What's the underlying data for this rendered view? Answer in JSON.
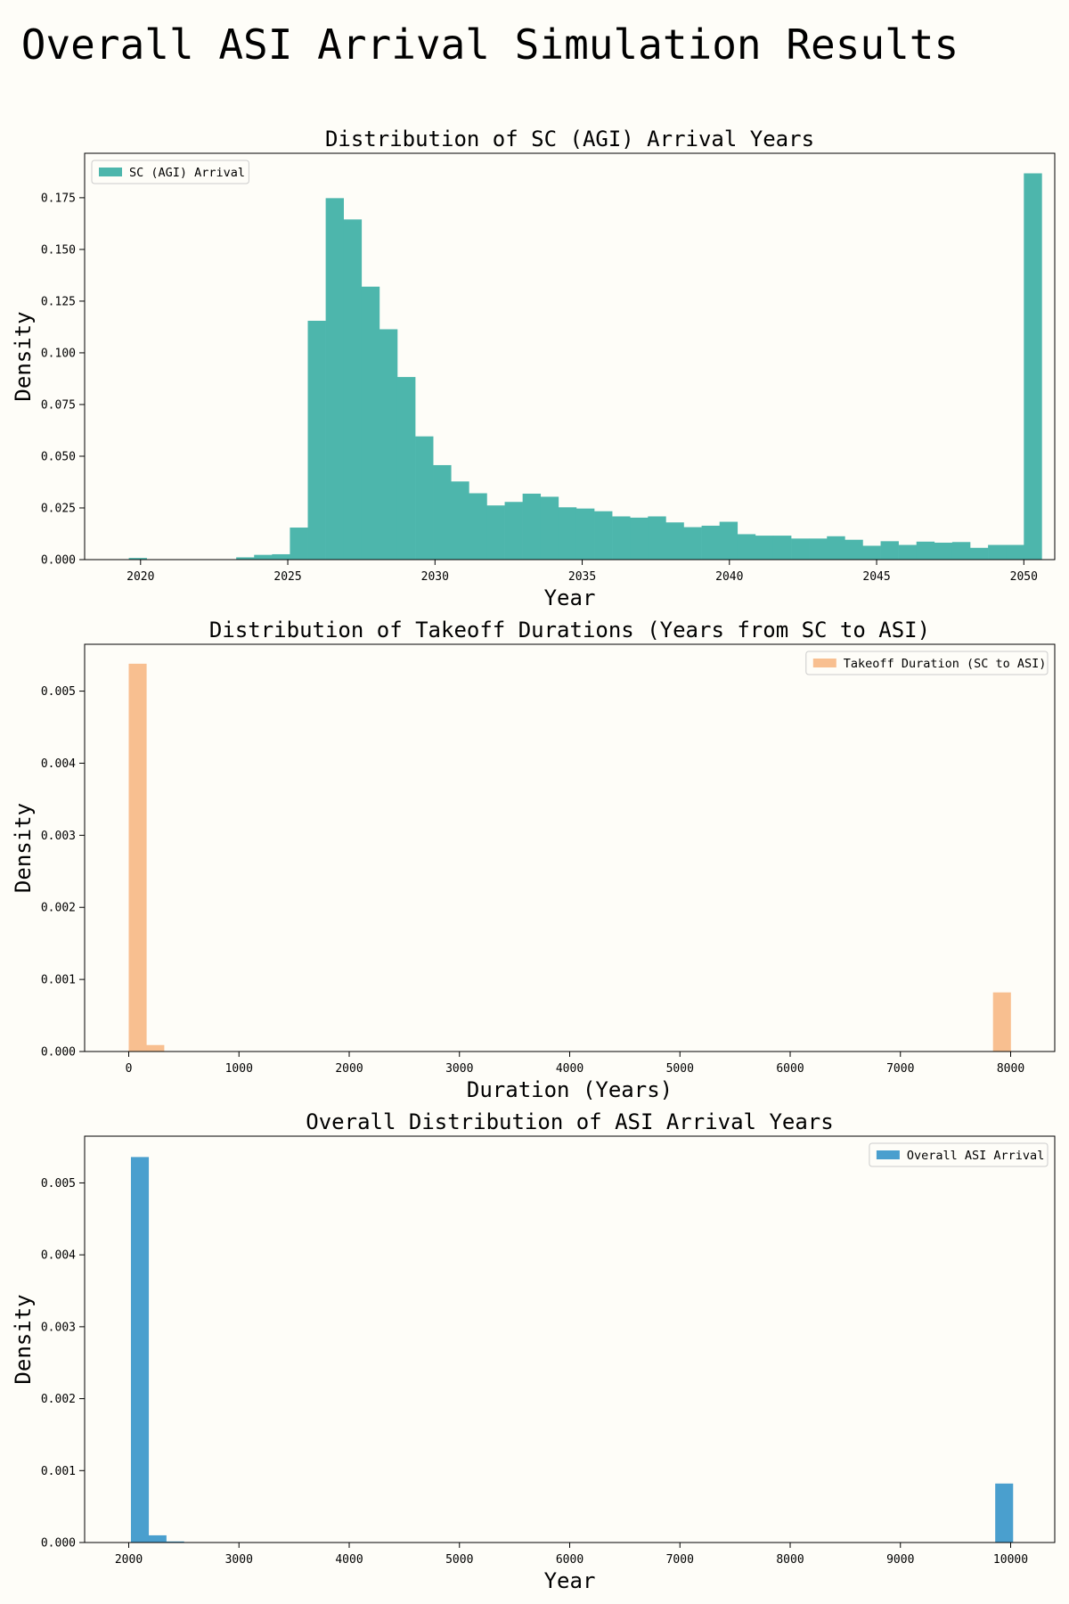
{
  "suptitle": "Overall ASI Arrival Simulation Results",
  "colors": {
    "background": "#fefdf8",
    "teal": "#4db6ac",
    "orange": "#f8bf90",
    "blue": "#4a9fce"
  },
  "chart_data": [
    {
      "type": "bar",
      "title": "Distribution of SC (AGI) Arrival Years",
      "xlabel": "Year",
      "ylabel": "Density",
      "xlim": [
        2018.1,
        2051.05
      ],
      "ylim": [
        0,
        0.1965
      ],
      "xticks": [
        2020,
        2025,
        2030,
        2035,
        2040,
        2045,
        2050
      ],
      "xtick_labels": [
        "2020",
        "2025",
        "2030",
        "2035",
        "2040",
        "2045",
        "2050"
      ],
      "yticks": [
        0,
        0.025,
        0.05,
        0.075,
        0.1,
        0.125,
        0.15,
        0.175
      ],
      "ytick_labels": [
        "0.000",
        "0.025",
        "0.050",
        "0.075",
        "0.100",
        "0.125",
        "0.150",
        "0.175"
      ],
      "legend": {
        "label": "SC (AGI) Arrival",
        "position": "upper-left"
      },
      "color": "#4db6ac",
      "bins": {
        "start": 2019.6,
        "width": 0.608,
        "values": [
          0.0008,
          0,
          0,
          0,
          0,
          0,
          0.0011,
          0.0023,
          0.0026,
          0.0155,
          0.1155,
          0.1748,
          0.1645,
          0.132,
          0.1114,
          0.0883,
          0.0596,
          0.0457,
          0.0378,
          0.0321,
          0.0262,
          0.0279,
          0.0319,
          0.0304,
          0.0253,
          0.0247,
          0.0234,
          0.0209,
          0.0203,
          0.0209,
          0.018,
          0.0157,
          0.0164,
          0.0183,
          0.0123,
          0.0116,
          0.0116,
          0.0102,
          0.0102,
          0.0113,
          0.0096,
          0.0067,
          0.0089,
          0.0071,
          0.0087,
          0.0082,
          0.0085,
          0.0057,
          0.0071,
          0.0071,
          0.1868
        ]
      }
    },
    {
      "type": "bar",
      "title": "Distribution of Takeoff Durations (Years from SC to ASI)",
      "xlabel": "Duration (Years)",
      "ylabel": "Density",
      "xlim": [
        -400,
        8400
      ],
      "ylim": [
        0,
        0.00565
      ],
      "xticks": [
        0,
        1000,
        2000,
        3000,
        4000,
        5000,
        6000,
        7000,
        8000
      ],
      "xtick_labels": [
        "0",
        "1000",
        "2000",
        "3000",
        "4000",
        "5000",
        "6000",
        "7000",
        "8000"
      ],
      "yticks": [
        0,
        0.001,
        0.002,
        0.003,
        0.004,
        0.005
      ],
      "ytick_labels": [
        "0.000",
        "0.001",
        "0.002",
        "0.003",
        "0.004",
        "0.005"
      ],
      "legend": {
        "label": "Takeoff Duration (SC to ASI)",
        "position": "upper-right"
      },
      "color": "#f8bf90",
      "bins": {
        "start": 0,
        "width": 160,
        "values": [
          0.00538,
          9e-05,
          0,
          0,
          0,
          0,
          0,
          0,
          0,
          0,
          0,
          0,
          0,
          0,
          0,
          0,
          0,
          0,
          0,
          0,
          0,
          0,
          0,
          0,
          0,
          0,
          0,
          0,
          0,
          0,
          0,
          0,
          0,
          0,
          0,
          0,
          0,
          0,
          0,
          0,
          0,
          0,
          0,
          0,
          0,
          0,
          0,
          0,
          0,
          0.00082
        ]
      }
    },
    {
      "type": "bar",
      "title": "Overall Distribution of ASI Arrival Years",
      "xlabel": "Year",
      "ylabel": "Density",
      "xlim": [
        1600,
        10400
      ],
      "ylim": [
        0,
        0.00565
      ],
      "xticks": [
        2000,
        3000,
        4000,
        5000,
        6000,
        7000,
        8000,
        9000,
        10000
      ],
      "xtick_labels": [
        "2000",
        "3000",
        "4000",
        "5000",
        "6000",
        "7000",
        "8000",
        "9000",
        "10000"
      ],
      "yticks": [
        0,
        0.001,
        0.002,
        0.003,
        0.004,
        0.005
      ],
      "ytick_labels": [
        "0.000",
        "0.001",
        "0.002",
        "0.003",
        "0.004",
        "0.005"
      ],
      "legend": {
        "label": "Overall ASI Arrival",
        "position": "upper-right"
      },
      "color": "#4a9fce",
      "bins": {
        "start": 2020,
        "width": 160,
        "values": [
          0.00536,
          0.0001,
          1.5e-05,
          0,
          0,
          0,
          0,
          0,
          0,
          0,
          0,
          0,
          0,
          0,
          0,
          0,
          0,
          0,
          0,
          0,
          0,
          0,
          0,
          0,
          0,
          0,
          0,
          0,
          0,
          0,
          0,
          0,
          0,
          0,
          0,
          0,
          0,
          0,
          0,
          0,
          0,
          0,
          0,
          0,
          0,
          0,
          0,
          0,
          0,
          0.00082
        ]
      }
    }
  ]
}
